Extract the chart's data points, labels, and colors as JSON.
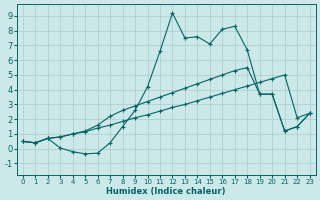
{
  "xlabel": "Humidex (Indice chaleur)",
  "bg_color": "#cce8e8",
  "grid_color": "#aacccc",
  "line_color": "#006666",
  "xlim": [
    -0.5,
    23.5
  ],
  "ylim": [
    -1.8,
    9.8
  ],
  "xticks": [
    0,
    1,
    2,
    3,
    4,
    5,
    6,
    7,
    8,
    9,
    10,
    11,
    12,
    13,
    14,
    15,
    16,
    17,
    18,
    19,
    20,
    21,
    22,
    23
  ],
  "yticks": [
    -1,
    0,
    1,
    2,
    3,
    4,
    5,
    6,
    7,
    8,
    9
  ],
  "line1_x": [
    0,
    1,
    2,
    3,
    4,
    5,
    6,
    7,
    8,
    9,
    10,
    11,
    12,
    13,
    14,
    15,
    16,
    17,
    18,
    19,
    20,
    21,
    22,
    23
  ],
  "line1_y": [
    0.5,
    0.4,
    0.7,
    0.8,
    1.0,
    1.15,
    1.4,
    1.6,
    1.85,
    2.1,
    2.3,
    2.55,
    2.8,
    3.0,
    3.25,
    3.5,
    3.75,
    4.0,
    4.25,
    4.5,
    4.75,
    5.0,
    2.1,
    2.4
  ],
  "line2_x": [
    0,
    1,
    2,
    3,
    4,
    5,
    6,
    7,
    8,
    9,
    10,
    11,
    12,
    13,
    14,
    15,
    16,
    17,
    18,
    19,
    20,
    21,
    22,
    23
  ],
  "line2_y": [
    0.5,
    0.4,
    0.7,
    0.8,
    1.0,
    1.2,
    1.6,
    2.2,
    2.6,
    2.9,
    3.2,
    3.5,
    3.8,
    4.1,
    4.4,
    4.7,
    5.0,
    5.3,
    5.5,
    3.7,
    3.7,
    1.2,
    1.5,
    2.4
  ],
  "line3_x": [
    0,
    1,
    2,
    3,
    4,
    5,
    6,
    7,
    8,
    9,
    10,
    11,
    12,
    13,
    14,
    15,
    16,
    17,
    18,
    19,
    20,
    21,
    22,
    23
  ],
  "line3_y": [
    0.5,
    0.4,
    0.7,
    0.05,
    -0.2,
    -0.35,
    -0.3,
    0.4,
    1.5,
    2.6,
    4.2,
    6.6,
    9.2,
    7.5,
    7.6,
    7.1,
    8.1,
    8.3,
    6.7,
    3.7,
    3.7,
    1.2,
    1.5,
    2.4
  ]
}
